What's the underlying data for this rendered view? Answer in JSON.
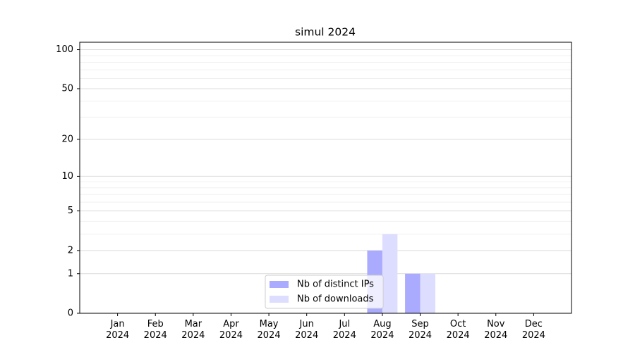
{
  "chart_data": {
    "type": "bar",
    "title": "simul 2024",
    "categories": [
      "Jan\n2024",
      "Feb\n2024",
      "Mar\n2024",
      "Apr\n2024",
      "May\n2024",
      "Jun\n2024",
      "Jul\n2024",
      "Aug\n2024",
      "Sep\n2024",
      "Oct\n2024",
      "Nov\n2024",
      "Dec\n2024"
    ],
    "series": [
      {
        "name": "Nb of distinct IPs",
        "color": "#aaaaff",
        "values": [
          0,
          0,
          0,
          0,
          0,
          0,
          0,
          2,
          1,
          0,
          0,
          0
        ]
      },
      {
        "name": "Nb of downloads",
        "color": "#ddddff",
        "values": [
          0,
          0,
          0,
          0,
          0,
          0,
          0,
          3,
          1,
          0,
          0,
          0
        ]
      }
    ],
    "yscale": "log1p",
    "ylim": [
      0,
      114
    ],
    "yticks": [
      0,
      1,
      2,
      5,
      10,
      20,
      50,
      100
    ],
    "yminorticks": [
      3,
      4,
      6,
      7,
      8,
      9,
      30,
      40,
      60,
      70,
      80,
      90
    ],
    "grid": true,
    "legend": "lower center"
  }
}
